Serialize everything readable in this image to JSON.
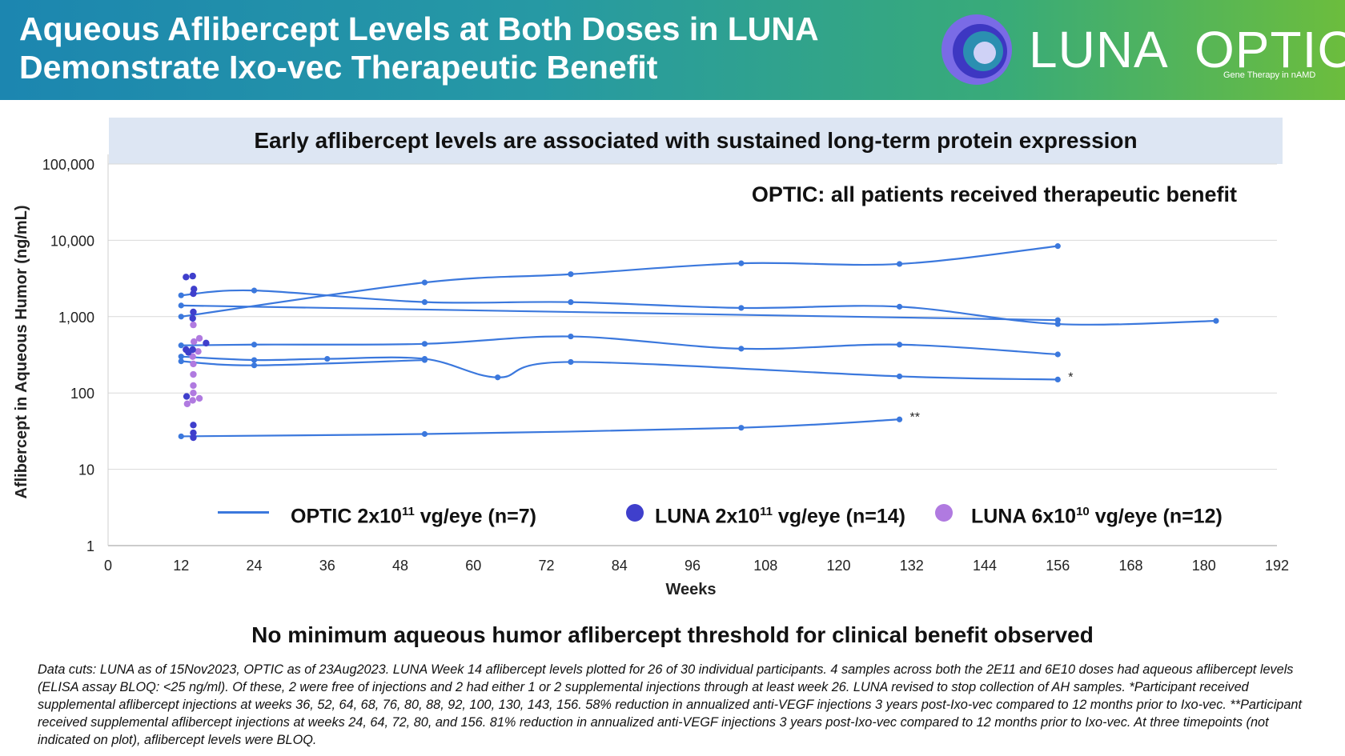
{
  "header": {
    "title_line1": "Aqueous Aflibercept Levels at Both Doses in LUNA",
    "title_line2": "Demonstrate Ixo-vec Therapeutic Benefit",
    "brand_left": "LUNA",
    "brand_right": "OPTIC",
    "brand_tagline": "Gene Therapy in nAMD"
  },
  "colors": {
    "optic_line": "#3b78dd",
    "luna_high": "#3f3fcc",
    "luna_low": "#b07ae0",
    "banner_bg": "#dde6f3"
  },
  "banner_text": "Early aflibercept levels are associated with sustained long-term protein expression",
  "chart_data": {
    "type": "line",
    "scale_y": "log",
    "annotation": "OPTIC: all patients received therapeutic benefit",
    "xlabel": "Weeks",
    "ylabel": "Aflibercept in Aqueous Humor (ng/mL)",
    "xlim": [
      0,
      192
    ],
    "ylim": [
      1,
      100000
    ],
    "x_ticks": [
      "0",
      "12",
      "24",
      "36",
      "48",
      "60",
      "72",
      "84",
      "96",
      "108",
      "120",
      "132",
      "144",
      "156",
      "168",
      "180",
      "192"
    ],
    "y_ticks": [
      {
        "value": 1,
        "label": "1"
      },
      {
        "value": 10,
        "label": "10"
      },
      {
        "value": 100,
        "label": "100"
      },
      {
        "value": 1000,
        "label": "1,000"
      },
      {
        "value": 10000,
        "label": "10,000"
      },
      {
        "value": 100000,
        "label": "100,000"
      }
    ],
    "legend": [
      {
        "label": "OPTIC 2x10",
        "sup": "11",
        "suffix": " vg/eye (n=7)"
      },
      {
        "label": "LUNA 2x10",
        "sup": "11",
        "suffix": " vg/eye (n=14)"
      },
      {
        "label": "LUNA 6x10",
        "sup": "10",
        "suffix": " vg/eye (n=12)"
      }
    ],
    "optic_series": [
      {
        "name": "OPTIC patient 1",
        "points": [
          [
            12,
            1000
          ],
          [
            52,
            2800
          ],
          [
            76,
            3600
          ],
          [
            104,
            5000
          ],
          [
            130,
            4900
          ],
          [
            156,
            8400
          ]
        ],
        "marker": ""
      },
      {
        "name": "OPTIC patient 2",
        "points": [
          [
            12,
            1900
          ],
          [
            24,
            2200
          ],
          [
            52,
            1550
          ],
          [
            76,
            1550
          ],
          [
            104,
            1300
          ],
          [
            130,
            1350
          ],
          [
            156,
            800
          ],
          [
            182,
            880
          ]
        ],
        "marker": ""
      },
      {
        "name": "OPTIC patient 3",
        "points": [
          [
            12,
            1400
          ],
          [
            156,
            900
          ]
        ],
        "marker": ""
      },
      {
        "name": "OPTIC patient 4",
        "points": [
          [
            12,
            420
          ],
          [
            24,
            430
          ],
          [
            52,
            440
          ],
          [
            76,
            550
          ],
          [
            104,
            380
          ],
          [
            130,
            430
          ],
          [
            156,
            320
          ]
        ],
        "marker": ""
      },
      {
        "name": "OPTIC patient 5",
        "points": [
          [
            12,
            300
          ],
          [
            24,
            270
          ],
          [
            36,
            280
          ],
          [
            52,
            280
          ],
          [
            64,
            160
          ],
          [
            76,
            255
          ],
          [
            130,
            165
          ],
          [
            156,
            150
          ]
        ],
        "marker": "*"
      },
      {
        "name": "OPTIC patient 6",
        "points": [
          [
            12,
            260
          ],
          [
            24,
            230
          ],
          [
            52,
            270
          ]
        ],
        "marker": ""
      },
      {
        "name": "OPTIC patient 7",
        "points": [
          [
            12,
            27
          ],
          [
            52,
            29
          ],
          [
            104,
            35
          ],
          [
            130,
            45
          ]
        ],
        "marker": "**"
      }
    ],
    "luna_high_points": [
      {
        "x": 12.8,
        "y": 3300
      },
      {
        "x": 13.9,
        "y": 3400
      },
      {
        "x": 14.1,
        "y": 2300
      },
      {
        "x": 14.0,
        "y": 2000
      },
      {
        "x": 14.0,
        "y": 1150
      },
      {
        "x": 13.9,
        "y": 950
      },
      {
        "x": 12.8,
        "y": 370
      },
      {
        "x": 13.9,
        "y": 370
      },
      {
        "x": 13.2,
        "y": 340
      },
      {
        "x": 16.1,
        "y": 450
      },
      {
        "x": 12.9,
        "y": 90
      },
      {
        "x": 14.0,
        "y": 38
      },
      {
        "x": 14.0,
        "y": 30
      },
      {
        "x": 14.0,
        "y": 26
      }
    ],
    "luna_low_points": [
      {
        "x": 14.0,
        "y": 780
      },
      {
        "x": 15.0,
        "y": 520
      },
      {
        "x": 14.1,
        "y": 470
      },
      {
        "x": 14.8,
        "y": 350
      },
      {
        "x": 13.9,
        "y": 300
      },
      {
        "x": 14.0,
        "y": 240
      },
      {
        "x": 14.0,
        "y": 175
      },
      {
        "x": 14.0,
        "y": 125
      },
      {
        "x": 14.0,
        "y": 100
      },
      {
        "x": 15.0,
        "y": 85
      },
      {
        "x": 13.9,
        "y": 80
      },
      {
        "x": 13.0,
        "y": 72
      }
    ]
  },
  "conclusion": "No minimum aqueous humor aflibercept threshold for clinical benefit observed",
  "footnote": "Data cuts: LUNA as of 15Nov2023, OPTIC as of 23Aug2023.  LUNA Week 14 aflibercept levels plotted for 26 of 30 individual participants. 4 samples across both the 2E11 and 6E10 doses had aqueous aflibercept levels (ELISA assay BLOQ: <25 ng/ml).  Of these, 2 were free of injections and 2 had either 1 or 2 supplemental injections through at least week 26. LUNA revised to stop collection of AH samples. *Participant received supplemental aflibercept injections at weeks 36, 52, 64, 68, 76, 80, 88, 92, 100, 130, 143, 156. 58% reduction in annualized anti-VEGF injections 3 years post-Ixo-vec compared to 12 months prior to Ixo-vec.  **Participant received supplemental aflibercept injections at weeks 24, 64, 72, 80, and 156. 81% reduction in annualized anti-VEGF injections 3 years post-Ixo-vec compared to 12 months prior to Ixo-vec.  At three timepoints (not indicated on plot), aflibercept levels were BLOQ."
}
